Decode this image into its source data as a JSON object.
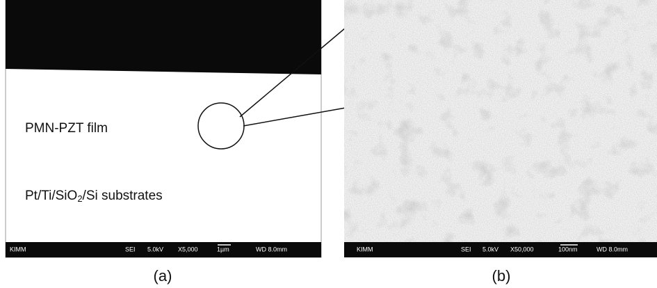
{
  "panels": [
    {
      "caption": "(a)",
      "annotations": {
        "film": "PMN-PZT film",
        "substrate": [
          "Pt/Ti/SiO",
          "2",
          "/Si substrates"
        ]
      },
      "info_bar": [
        "KIMM",
        "SEI",
        "5.0kV",
        "X5,000",
        "1µm",
        "WD 8.0mm"
      ]
    },
    {
      "caption": "(b)",
      "info_bar": [
        "KIMM",
        "SEI",
        "5.0kV",
        "X50,000",
        "100nm",
        "WD 8.0mm"
      ]
    }
  ]
}
